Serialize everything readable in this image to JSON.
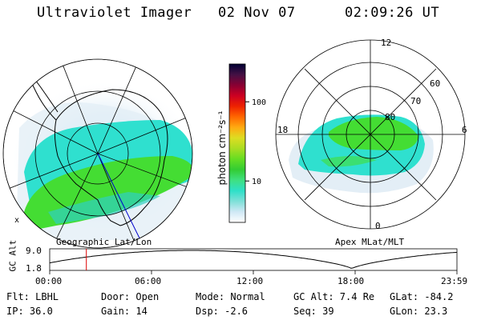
{
  "header": {
    "title": "Ultraviolet Imager",
    "date": "02 Nov 07",
    "time": "02:09:26 UT"
  },
  "colorbar": {
    "unit_label": "photon cm⁻²s⁻¹",
    "tick_labels": [
      "100",
      "10"
    ],
    "ticks": [
      100,
      10
    ],
    "range": [
      3,
      300
    ],
    "stops": [
      "#ffffff",
      "#cfe8f5",
      "#7fe0d8",
      "#2ee0c8",
      "#3fe080",
      "#33cc33",
      "#66dd22",
      "#aadd22",
      "#dddd22",
      "#ffaa11",
      "#ff6600",
      "#ee2200",
      "#cc0022",
      "#880033",
      "#441144",
      "#000033"
    ]
  },
  "left_panel": {
    "label": "Geographic Lat/Lon"
  },
  "right_panel": {
    "label": "Apex MLat/MLT",
    "mlt_labels": {
      "top": "12",
      "left": "18",
      "right": "6",
      "bottom": "0"
    },
    "lat_labels": [
      "60",
      "70",
      "80"
    ]
  },
  "altitude_strip": {
    "axis_label": "GC Alt",
    "y_labels": [
      "9.0",
      "1.8"
    ],
    "y_range": [
      1.8,
      9.0
    ],
    "x_labels": [
      "00:00",
      "06:00",
      "12:00",
      "18:00",
      "23:59"
    ],
    "marker_hour": 2.16
  },
  "status": {
    "filter": "Flt: LBHL",
    "ip": "IP: 36.0",
    "door": "Door: Open",
    "gain": "Gain: 14",
    "mode": "Mode: Normal",
    "dsp": "Dsp:    -2.6",
    "gc_alt": "GC Alt: 7.4 Re",
    "seq": "Seq: 39",
    "glat": "GLat: -84.2",
    "glon": "GLon:  23.3"
  },
  "colors": {
    "aurora_green": "#44dd33",
    "aurora_cyan": "#22ddcc",
    "haze": "#cfe4f0",
    "marker": "#dd0000",
    "meridian": "#0000cc"
  }
}
